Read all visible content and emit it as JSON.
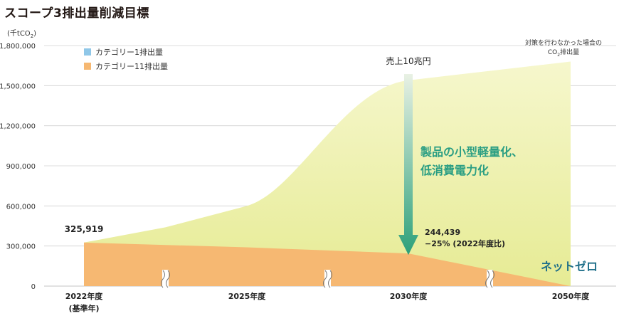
{
  "title": "スコープ3排出量削減目標",
  "unit_prefix": "(千tCO",
  "unit_sub": "2",
  "unit_suffix": ")",
  "legend": [
    {
      "label": "カテゴリー1排出量",
      "color": "#8fc7e8"
    },
    {
      "label": "カテゴリー11排出量",
      "color": "#f6b872"
    }
  ],
  "note": {
    "line1": "対策を行わなかった場合の",
    "line2_prefix": "CO",
    "line2_sub": "2",
    "line2_suffix": "排出量"
  },
  "colors": {
    "orange_area": "#f6b872",
    "yellow_area_top": "#f6f7cd",
    "yellow_area_bottom": "#e6eb94",
    "arrow_top": "#e9f1e4",
    "arrow_bottom": "#2ca07a",
    "reduction_text": "#2a9e83",
    "netzero_text": "#1f6f89",
    "grid": "#d0d0d0"
  },
  "chart_data": {
    "type": "area",
    "title": "スコープ3排出量削減目標",
    "xlabel": "",
    "ylabel": "(千tCO2)",
    "ylim": [
      0,
      1800000
    ],
    "yticks": [
      0,
      300000,
      600000,
      900000,
      1200000,
      1500000,
      1800000
    ],
    "ytick_labels": [
      "0",
      "300,000",
      "600,000",
      "900,000",
      "1,200,000",
      "1,500,000",
      "1,800,000"
    ],
    "x_labels": [
      "2022年度",
      "2025年度",
      "2030年度",
      "2050年度"
    ],
    "x_sublabel": "(基準年)",
    "grid": true,
    "legend_position": "top-left",
    "axis_breaks": true,
    "series": [
      {
        "name": "カテゴリー1排出量",
        "values": [
          0,
          0,
          0,
          0,
          0,
          0
        ]
      },
      {
        "name": "カテゴリー11排出量",
        "points": [
          {
            "x": 0,
            "y": 325919
          },
          {
            "x": 1,
            "y": 290000
          },
          {
            "x": 2,
            "y": 244439
          },
          {
            "x": 3,
            "y": 0
          }
        ]
      },
      {
        "name": "対策を行わなかった場合のCO2排出量",
        "points": [
          {
            "x": 0,
            "y": 325919
          },
          {
            "x": 0.5,
            "y": 440000
          },
          {
            "x": 1,
            "y": 600000
          },
          {
            "x": 1.5,
            "y": 1050000
          },
          {
            "x": 2,
            "y": 1540000
          },
          {
            "x": 3,
            "y": 1680000
          }
        ]
      }
    ],
    "annotations": {
      "start_value": "325,919",
      "target_value": "244,439",
      "target_change": "−25% (2022年度比)",
      "sales_label": "売上10兆円",
      "reduction_line1": "製品の小型軽量化、",
      "reduction_line2": "低消費電力化",
      "netzero": "ネットゼロ"
    }
  }
}
